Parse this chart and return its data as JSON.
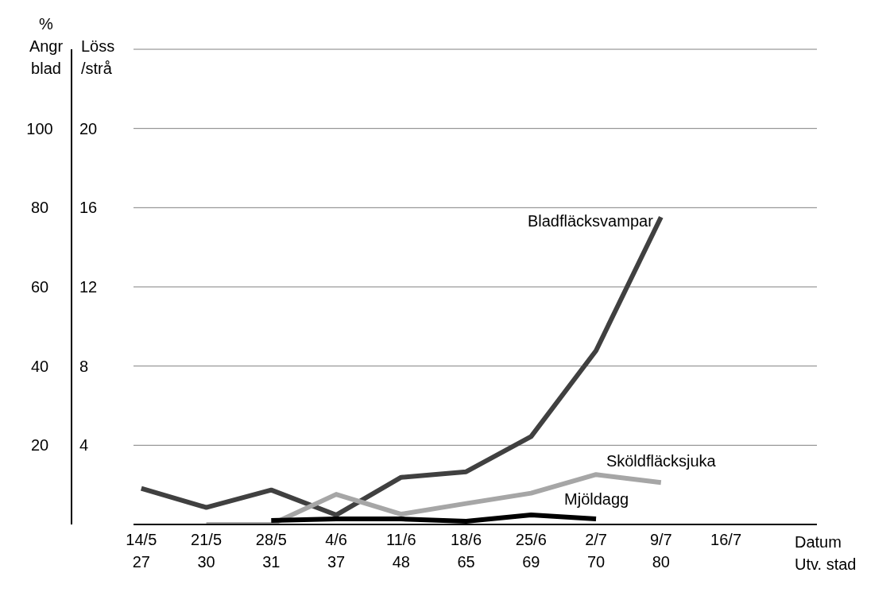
{
  "chart_data": {
    "type": "line",
    "ylabel": "%\nAngr\nblad",
    "y2label": "Löss\n/strå",
    "xlabel": "Datum\nUtv. stad",
    "categories": [
      "14/5\n27",
      "21/5\n30",
      "28/5\n31",
      "4/6\n37",
      "11/6\n48",
      "18/6\n65",
      "25/6\n69",
      "2/7\n70",
      "9/7\n80",
      "16/7\n"
    ],
    "series": [
      {
        "name": "Bladfläcksvampar",
        "color": "#404040",
        "values": [
          9.1,
          4.3,
          8.7,
          2.4,
          11.9,
          13.3,
          22.2,
          43.9,
          77.6,
          null
        ]
      },
      {
        "name": "Sköldfläcksjuka",
        "color": "#a6a6a6",
        "values": [
          null,
          0,
          0,
          7.6,
          2.6,
          5.3,
          7.9,
          12.6,
          10.6,
          null
        ]
      },
      {
        "name": "Mjöldagg",
        "color": "#000000",
        "values": [
          null,
          null,
          1,
          1.4,
          1.4,
          0.8,
          2.4,
          1.4,
          null,
          null
        ]
      }
    ],
    "ylim": [
      0,
      120
    ],
    "yticks": [
      20,
      40,
      60,
      80,
      100
    ],
    "y2lim": [
      0,
      24
    ],
    "y2ticks": [
      4,
      8,
      12,
      16,
      20
    ],
    "grid": "y",
    "legend": false,
    "marker": "none",
    "line_style": "solid"
  }
}
